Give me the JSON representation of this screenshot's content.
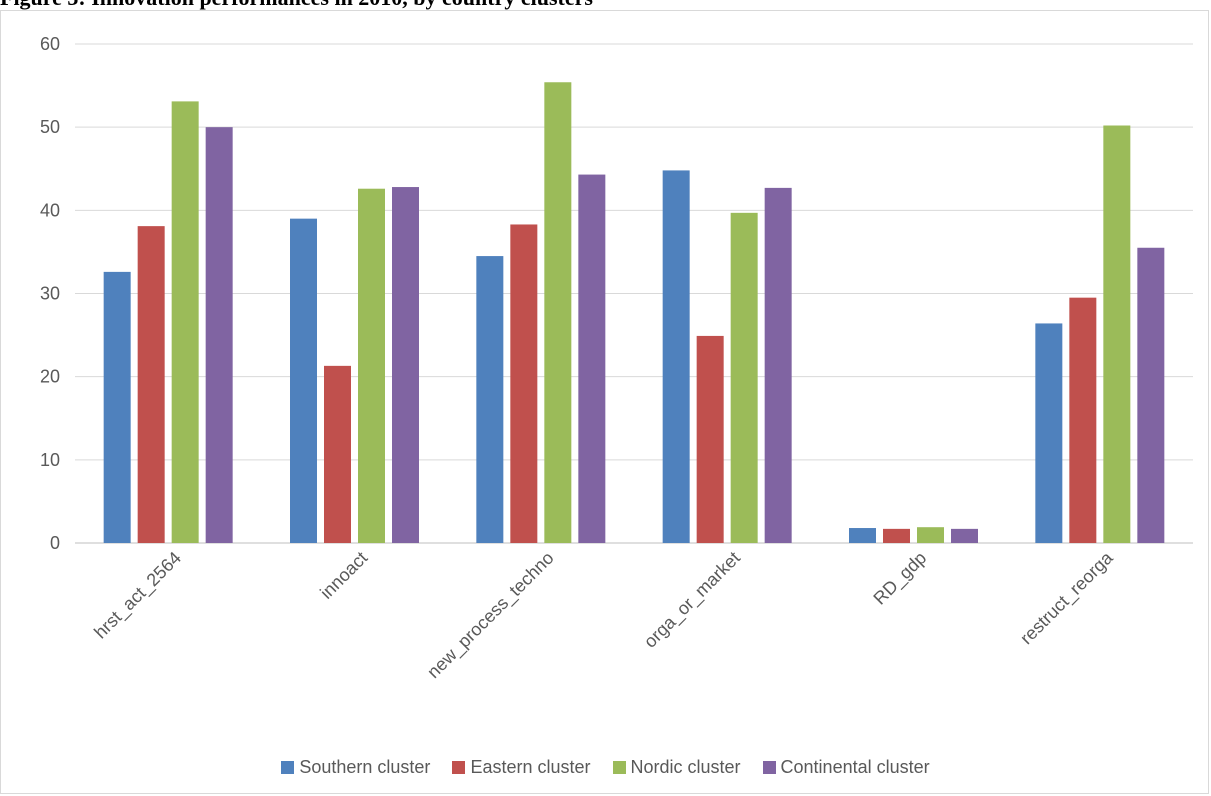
{
  "chart_data": {
    "type": "bar",
    "title": "Figure 3: Innovation performances in 2010, by country clusters",
    "xlabel": "",
    "ylabel": "",
    "ylim": [
      0,
      60
    ],
    "yticks": [
      0,
      10,
      20,
      30,
      40,
      50,
      60
    ],
    "grid": true,
    "legend_position": "bottom",
    "categories": [
      "hrst_act_2564",
      "innoact",
      "new_process_techno",
      "orga_or_market",
      "RD_gdp",
      "restruct_reorga"
    ],
    "series": [
      {
        "name": "Southern cluster",
        "color": "#4f81bd",
        "values": [
          32.6,
          39.0,
          34.5,
          44.8,
          1.8,
          26.4
        ]
      },
      {
        "name": "Eastern cluster",
        "color": "#c0504d",
        "values": [
          38.1,
          21.3,
          38.3,
          24.9,
          1.7,
          29.5
        ]
      },
      {
        "name": "Nordic cluster",
        "color": "#9bbb59",
        "values": [
          53.1,
          42.6,
          55.4,
          39.7,
          1.9,
          50.2
        ]
      },
      {
        "name": "Continental cluster",
        "color": "#8064a2",
        "values": [
          50.0,
          42.8,
          44.3,
          42.7,
          1.7,
          35.5
        ]
      }
    ]
  }
}
